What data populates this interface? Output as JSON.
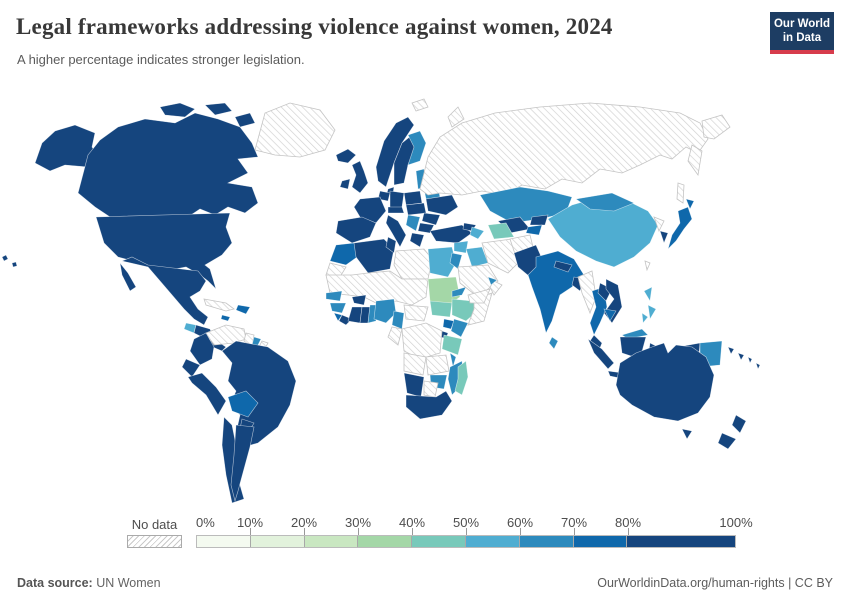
{
  "header": {
    "title": "Legal frameworks addressing violence against women, 2024",
    "subtitle": "A higher percentage indicates stronger legislation.",
    "logo_line1": "Our World",
    "logo_line2": "in Data",
    "logo_bg": "#1d3d63",
    "logo_accent": "#d73c4c"
  },
  "legend": {
    "no_data_label": "No data",
    "tick_labels": [
      "0%",
      "10%",
      "20%",
      "30%",
      "40%",
      "50%",
      "60%",
      "70%",
      "80%",
      "100%"
    ],
    "segment_order": [
      "c0",
      "c1",
      "c2",
      "c3",
      "c4",
      "c5",
      "c6",
      "c7",
      "c8"
    ],
    "segment_units": [
      1,
      1,
      1,
      1,
      1,
      1,
      1,
      1,
      2
    ]
  },
  "footer": {
    "source_label": "Data source:",
    "source_value": " UN Women",
    "credit": "OurWorldinData.org/human-rights | CC BY"
  },
  "chart_data": {
    "type": "heatmap",
    "subtype": "world-choropleth-map",
    "title": "Legal frameworks addressing violence against women, 2024",
    "unit": "% (share of legal frameworks in place)",
    "legend_position": "bottom",
    "bins": {
      "c0": {
        "range": "0-10%",
        "color": "#f4faf0"
      },
      "c1": {
        "range": "10-20%",
        "color": "#e2f2dc"
      },
      "c2": {
        "range": "20-30%",
        "color": "#c9e7c1"
      },
      "c3": {
        "range": "30-40%",
        "color": "#a4d7a7"
      },
      "c4": {
        "range": "40-50%",
        "color": "#78c9ba"
      },
      "c5": {
        "range": "50-60%",
        "color": "#4fadd1"
      },
      "c6": {
        "range": "60-70%",
        "color": "#2d8abd"
      },
      "c7": {
        "range": "70-80%",
        "color": "#0f68ab"
      },
      "c8": {
        "range": "80-100%",
        "color": "#15457e"
      },
      "nd": {
        "range": "No data",
        "color": "hatch"
      }
    },
    "countries": [
      {
        "id": "alaska",
        "name": "United States (Alaska)",
        "bin": "c8"
      },
      {
        "id": "canada",
        "name": "Canada",
        "bin": "c8"
      },
      {
        "id": "arctic1",
        "name": "Canadian Arctic Islands",
        "bin": "c8"
      },
      {
        "id": "arctic2",
        "name": "Canadian Arctic Islands",
        "bin": "c8"
      },
      {
        "id": "arctic3",
        "name": "Canadian Arctic Islands",
        "bin": "c8"
      },
      {
        "id": "greenland",
        "name": "Greenland",
        "bin": "nd"
      },
      {
        "id": "usa",
        "name": "United States",
        "bin": "c8"
      },
      {
        "id": "hawaii",
        "name": "United States (Hawaii)",
        "bin": "c8"
      },
      {
        "id": "mexico",
        "name": "Mexico",
        "bin": "c8"
      },
      {
        "id": "baja",
        "name": "Mexico (Baja)",
        "bin": "c8"
      },
      {
        "id": "guatemala",
        "name": "Guatemala",
        "bin": "c5"
      },
      {
        "id": "honduras_nicaragua",
        "name": "Honduras / Nicaragua",
        "bin": "c8"
      },
      {
        "id": "costa_rica_panama",
        "name": "Costa Rica / Panama",
        "bin": "c8"
      },
      {
        "id": "cuba",
        "name": "Cuba",
        "bin": "nd"
      },
      {
        "id": "hispaniola",
        "name": "Haiti / Dominican Republic",
        "bin": "c7"
      },
      {
        "id": "jamaica",
        "name": "Jamaica",
        "bin": "c7"
      },
      {
        "id": "venezuela",
        "name": "Venezuela",
        "bin": "nd"
      },
      {
        "id": "guyana",
        "name": "Guyana",
        "bin": "nd"
      },
      {
        "id": "suriname",
        "name": "Suriname",
        "bin": "c6"
      },
      {
        "id": "fr_guiana",
        "name": "French Guiana",
        "bin": "nd"
      },
      {
        "id": "colombia",
        "name": "Colombia",
        "bin": "c8"
      },
      {
        "id": "ecuador",
        "name": "Ecuador",
        "bin": "c8"
      },
      {
        "id": "peru",
        "name": "Peru",
        "bin": "c8"
      },
      {
        "id": "brazil",
        "name": "Brazil",
        "bin": "c8"
      },
      {
        "id": "bolivia",
        "name": "Bolivia",
        "bin": "c7"
      },
      {
        "id": "paraguay",
        "name": "Paraguay",
        "bin": "c8"
      },
      {
        "id": "chile",
        "name": "Chile",
        "bin": "c8"
      },
      {
        "id": "argentina",
        "name": "Argentina",
        "bin": "c8"
      },
      {
        "id": "iceland",
        "name": "Iceland",
        "bin": "c8"
      },
      {
        "id": "ireland",
        "name": "Ireland",
        "bin": "c8"
      },
      {
        "id": "uk",
        "name": "United Kingdom",
        "bin": "c8"
      },
      {
        "id": "norway",
        "name": "Norway",
        "bin": "c8"
      },
      {
        "id": "sweden",
        "name": "Sweden",
        "bin": "c8"
      },
      {
        "id": "finland",
        "name": "Finland",
        "bin": "c6"
      },
      {
        "id": "denmark",
        "name": "Denmark",
        "bin": "c8"
      },
      {
        "id": "baltics",
        "name": "Baltic States",
        "bin": "c6"
      },
      {
        "id": "belarus",
        "name": "Belarus",
        "bin": "c6"
      },
      {
        "id": "poland",
        "name": "Poland",
        "bin": "c8"
      },
      {
        "id": "germany",
        "name": "Germany",
        "bin": "c8"
      },
      {
        "id": "benelux",
        "name": "Benelux",
        "bin": "c8"
      },
      {
        "id": "france",
        "name": "France",
        "bin": "c8"
      },
      {
        "id": "iberia",
        "name": "Spain / Portugal",
        "bin": "c8"
      },
      {
        "id": "italy",
        "name": "Italy",
        "bin": "c8"
      },
      {
        "id": "alpine",
        "name": "Switzerland / Austria",
        "bin": "c8"
      },
      {
        "id": "central_europe",
        "name": "Czechia / Slovakia / Hungary",
        "bin": "c8"
      },
      {
        "id": "ukraine",
        "name": "Ukraine",
        "bin": "c8"
      },
      {
        "id": "romania",
        "name": "Romania",
        "bin": "c8"
      },
      {
        "id": "balkans",
        "name": "Western Balkans",
        "bin": "c6"
      },
      {
        "id": "bulgaria",
        "name": "Bulgaria",
        "bin": "c8"
      },
      {
        "id": "greece",
        "name": "Greece",
        "bin": "c8"
      },
      {
        "id": "russia",
        "name": "Russia",
        "bin": "nd"
      },
      {
        "id": "chukotka",
        "name": "Russia (Chukotka)",
        "bin": "nd"
      },
      {
        "id": "kamchatka",
        "name": "Russia (Kamchatka)",
        "bin": "nd"
      },
      {
        "id": "sakhalin",
        "name": "Russia (Sakhalin)",
        "bin": "nd"
      },
      {
        "id": "svalbard",
        "name": "Svalbard",
        "bin": "nd"
      },
      {
        "id": "novaya_zemlya",
        "name": "Novaya Zemlya",
        "bin": "nd"
      },
      {
        "id": "morocco",
        "name": "Morocco",
        "bin": "c7"
      },
      {
        "id": "w_sahara",
        "name": "Western Sahara",
        "bin": "nd"
      },
      {
        "id": "algeria",
        "name": "Algeria",
        "bin": "c8"
      },
      {
        "id": "tunisia",
        "name": "Tunisia",
        "bin": "c8"
      },
      {
        "id": "libya",
        "name": "Libya",
        "bin": "nd"
      },
      {
        "id": "egypt",
        "name": "Egypt",
        "bin": "c5"
      },
      {
        "id": "sahara_belt",
        "name": "Mauritania / Mali / Niger / Chad",
        "bin": "nd"
      },
      {
        "id": "senegal",
        "name": "Senegal",
        "bin": "c6"
      },
      {
        "id": "guinea",
        "name": "Guinea",
        "bin": "c6"
      },
      {
        "id": "sierra_leone",
        "name": "Sierra Leone",
        "bin": "c7"
      },
      {
        "id": "liberia",
        "name": "Liberia",
        "bin": "c8"
      },
      {
        "id": "ivory_coast",
        "name": "Côte d'Ivoire",
        "bin": "c8"
      },
      {
        "id": "burkina",
        "name": "Burkina Faso",
        "bin": "c8"
      },
      {
        "id": "ghana",
        "name": "Ghana",
        "bin": "c8"
      },
      {
        "id": "togo_benin",
        "name": "Togo / Benin",
        "bin": "c6"
      },
      {
        "id": "nigeria",
        "name": "Nigeria",
        "bin": "c6"
      },
      {
        "id": "cameroon",
        "name": "Cameroon",
        "bin": "c6"
      },
      {
        "id": "car",
        "name": "Central African Republic",
        "bin": "nd"
      },
      {
        "id": "congo_gabon",
        "name": "Congo / Gabon",
        "bin": "nd"
      },
      {
        "id": "sudan",
        "name": "Sudan",
        "bin": "c3"
      },
      {
        "id": "eritrea",
        "name": "Eritrea",
        "bin": "c6"
      },
      {
        "id": "south_sudan",
        "name": "South Sudan",
        "bin": "c4"
      },
      {
        "id": "ethiopia",
        "name": "Ethiopia",
        "bin": "c4"
      },
      {
        "id": "somalia",
        "name": "Somalia",
        "bin": "nd"
      },
      {
        "id": "uganda",
        "name": "Uganda",
        "bin": "c7"
      },
      {
        "id": "kenya",
        "name": "Kenya",
        "bin": "c6"
      },
      {
        "id": "rwanda_burundi",
        "name": "Rwanda / Burundi",
        "bin": "c8"
      },
      {
        "id": "drc",
        "name": "Democratic Republic of Congo",
        "bin": "nd"
      },
      {
        "id": "tanzania",
        "name": "Tanzania",
        "bin": "c4"
      },
      {
        "id": "angola",
        "name": "Angola",
        "bin": "nd"
      },
      {
        "id": "zambia",
        "name": "Zambia",
        "bin": "nd"
      },
      {
        "id": "malawi",
        "name": "Malawi",
        "bin": "c6"
      },
      {
        "id": "mozambique",
        "name": "Mozambique",
        "bin": "c6"
      },
      {
        "id": "zimbabwe",
        "name": "Zimbabwe",
        "bin": "c6"
      },
      {
        "id": "namibia",
        "name": "Namibia",
        "bin": "c8"
      },
      {
        "id": "botswana",
        "name": "Botswana",
        "bin": "nd"
      },
      {
        "id": "south_africa",
        "name": "South Africa",
        "bin": "c8"
      },
      {
        "id": "madagascar",
        "name": "Madagascar",
        "bin": "c4"
      },
      {
        "id": "turkey",
        "name": "Turkey",
        "bin": "c8"
      },
      {
        "id": "georgia",
        "name": "Georgia",
        "bin": "c8"
      },
      {
        "id": "azerbaijan",
        "name": "Azerbaijan / Armenia",
        "bin": "c5"
      },
      {
        "id": "syria",
        "name": "Syria",
        "bin": "c5"
      },
      {
        "id": "iraq",
        "name": "Iraq",
        "bin": "c5"
      },
      {
        "id": "israel_jordan",
        "name": "Israel / Jordan",
        "bin": "c6"
      },
      {
        "id": "saudi",
        "name": "Saudi Arabia",
        "bin": "nd"
      },
      {
        "id": "yemen",
        "name": "Yemen",
        "bin": "nd"
      },
      {
        "id": "oman",
        "name": "Oman",
        "bin": "nd"
      },
      {
        "id": "uae",
        "name": "United Arab Emirates",
        "bin": "c6"
      },
      {
        "id": "iran",
        "name": "Iran",
        "bin": "nd"
      },
      {
        "id": "afghanistan",
        "name": "Afghanistan",
        "bin": "nd"
      },
      {
        "id": "kazakhstan",
        "name": "Kazakhstan",
        "bin": "c6"
      },
      {
        "id": "uzbekistan",
        "name": "Uzbekistan",
        "bin": "c8"
      },
      {
        "id": "turkmenistan",
        "name": "Turkmenistan",
        "bin": "c4"
      },
      {
        "id": "kyrgyzstan",
        "name": "Kyrgyzstan",
        "bin": "c8"
      },
      {
        "id": "tajikistan",
        "name": "Tajikistan",
        "bin": "c7"
      },
      {
        "id": "pakistan",
        "name": "Pakistan",
        "bin": "c8"
      },
      {
        "id": "india",
        "name": "India",
        "bin": "c7"
      },
      {
        "id": "nepal",
        "name": "Nepal",
        "bin": "c8"
      },
      {
        "id": "bangladesh",
        "name": "Bangladesh",
        "bin": "c8"
      },
      {
        "id": "sri_lanka",
        "name": "Sri Lanka",
        "bin": "c6"
      },
      {
        "id": "china",
        "name": "China",
        "bin": "c5"
      },
      {
        "id": "mongolia",
        "name": "Mongolia",
        "bin": "c6"
      },
      {
        "id": "north_korea",
        "name": "North Korea",
        "bin": "nd"
      },
      {
        "id": "south_korea",
        "name": "South Korea",
        "bin": "c8"
      },
      {
        "id": "japan",
        "name": "Japan",
        "bin": "c7"
      },
      {
        "id": "hokkaido",
        "name": "Japan (Hokkaido)",
        "bin": "c7"
      },
      {
        "id": "taiwan",
        "name": "Taiwan",
        "bin": "nd"
      },
      {
        "id": "myanmar",
        "name": "Myanmar",
        "bin": "nd"
      },
      {
        "id": "thailand",
        "name": "Thailand",
        "bin": "c7"
      },
      {
        "id": "laos",
        "name": "Laos",
        "bin": "c8"
      },
      {
        "id": "vietnam",
        "name": "Vietnam",
        "bin": "c8"
      },
      {
        "id": "cambodia",
        "name": "Cambodia",
        "bin": "c7"
      },
      {
        "id": "malaysia",
        "name": "Malaysia (Peninsula)",
        "bin": "c8"
      },
      {
        "id": "borneo_malaysia",
        "name": "Malaysia (Borneo)",
        "bin": "c6"
      },
      {
        "id": "philippines1",
        "name": "Philippines (Luzon)",
        "bin": "c5"
      },
      {
        "id": "philippines2",
        "name": "Philippines (Visayas)",
        "bin": "c5"
      },
      {
        "id": "philippines3",
        "name": "Philippines (Mindanao)",
        "bin": "c5"
      },
      {
        "id": "sumatra",
        "name": "Indonesia (Sumatra)",
        "bin": "c8"
      },
      {
        "id": "java",
        "name": "Indonesia (Java)",
        "bin": "c8"
      },
      {
        "id": "kalimantan",
        "name": "Indonesia (Kalimantan)",
        "bin": "c8"
      },
      {
        "id": "sulawesi",
        "name": "Indonesia (Sulawesi)",
        "bin": "c8"
      },
      {
        "id": "lesser_sunda",
        "name": "Indonesia (Lesser Sunda)",
        "bin": "c8"
      },
      {
        "id": "west_papua",
        "name": "Indonesia (Papua)",
        "bin": "c8"
      },
      {
        "id": "png",
        "name": "Papua New Guinea",
        "bin": "c6"
      },
      {
        "id": "solomon",
        "name": "Solomon Islands",
        "bin": "c8"
      },
      {
        "id": "vanuatu_fiji",
        "name": "Vanuatu / Fiji",
        "bin": "c8"
      },
      {
        "id": "australia",
        "name": "Australia",
        "bin": "c8"
      },
      {
        "id": "tasmania",
        "name": "Australia (Tasmania)",
        "bin": "c8"
      },
      {
        "id": "nz_north",
        "name": "New Zealand (North Island)",
        "bin": "c8"
      },
      {
        "id": "nz_south",
        "name": "New Zealand (South Island)",
        "bin": "c8"
      }
    ]
  }
}
